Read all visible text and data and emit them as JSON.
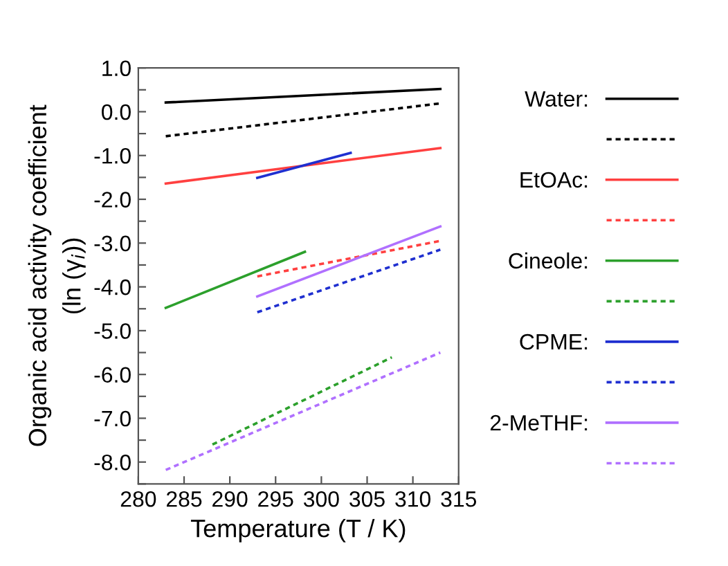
{
  "chart_data": {
    "type": "line",
    "xlabel": "Temperature (T / K)",
    "ylabel": "Organic acid activity coefficient\n(ln (γ$_{i}$))",
    "series": [
      {
        "name": "Water:",
        "color": "#000000",
        "line_style": "solid",
        "x": [
          283,
          313
        ],
        "values": [
          0.21,
          0.52
        ]
      },
      {
        "color": "#000000",
        "line_style": "dotted",
        "x": [
          283,
          313
        ],
        "values": [
          -0.56,
          0.19
        ]
      },
      {
        "name": "EtOAc:",
        "color": "#ff4040",
        "line_style": "solid",
        "x": [
          283,
          313
        ],
        "values": [
          -1.64,
          -0.83
        ]
      },
      {
        "color": "#ff4040",
        "line_style": "dotted",
        "x": [
          293,
          313
        ],
        "values": [
          -3.76,
          -2.95
        ]
      },
      {
        "name": "Cineole:",
        "color": "#2ca02c",
        "line_style": "solid",
        "x": [
          283,
          298.2
        ],
        "values": [
          -4.48,
          -3.2
        ]
      },
      {
        "color": "#2ca02c",
        "line_style": "dotted",
        "x": [
          288.1,
          307.7
        ],
        "values": [
          -7.6,
          -5.61
        ]
      },
      {
        "name": "CPME:",
        "color": "#1f2fd0",
        "line_style": "solid",
        "x": [
          293,
          303.2
        ],
        "values": [
          -1.51,
          -0.94
        ]
      },
      {
        "color": "#1f2fd0",
        "line_style": "dotted",
        "x": [
          293,
          313
        ],
        "values": [
          -4.58,
          -3.15
        ]
      },
      {
        "name": "2-MeTHF:",
        "color": "#b070ff",
        "line_style": "solid",
        "x": [
          293,
          313
        ],
        "values": [
          -4.22,
          -2.62
        ]
      },
      {
        "color": "#b070ff",
        "line_style": "dotted",
        "x": [
          283,
          313
        ],
        "values": [
          -8.18,
          -5.5
        ]
      }
    ],
    "xlim": [
      280,
      315
    ],
    "xticks": [
      280,
      285,
      290,
      295,
      300,
      305,
      310,
      315
    ],
    "ylim": [
      -8.5,
      1.0
    ],
    "yticks": [
      {
        "value": 1.0,
        "label": "1.0"
      },
      {
        "value": 0.5,
        "label": null
      },
      {
        "value": 0.0,
        "label": "0.0"
      },
      {
        "value": -0.5,
        "label": null
      },
      {
        "value": -1.0,
        "label": "-1.0"
      },
      {
        "value": -1.5,
        "label": null
      },
      {
        "value": -2.0,
        "label": "-2.0"
      },
      {
        "value": -2.5,
        "label": null
      },
      {
        "value": -3.0,
        "label": "-3.0"
      },
      {
        "value": -3.5,
        "label": null
      },
      {
        "value": -4.0,
        "label": "-4.0"
      },
      {
        "value": -4.5,
        "label": null
      },
      {
        "value": -5.0,
        "label": "-5.0"
      },
      {
        "value": -5.5,
        "label": null
      },
      {
        "value": -6.0,
        "label": "-6.0"
      },
      {
        "value": -6.5,
        "label": null
      },
      {
        "value": -7.0,
        "label": "-7.0"
      },
      {
        "value": -7.5,
        "label": null
      },
      {
        "value": -8.0,
        "label": "-8.0"
      },
      {
        "value": -8.5,
        "label": null
      }
    ],
    "grid": false,
    "legend": "right",
    "marker": "none"
  }
}
